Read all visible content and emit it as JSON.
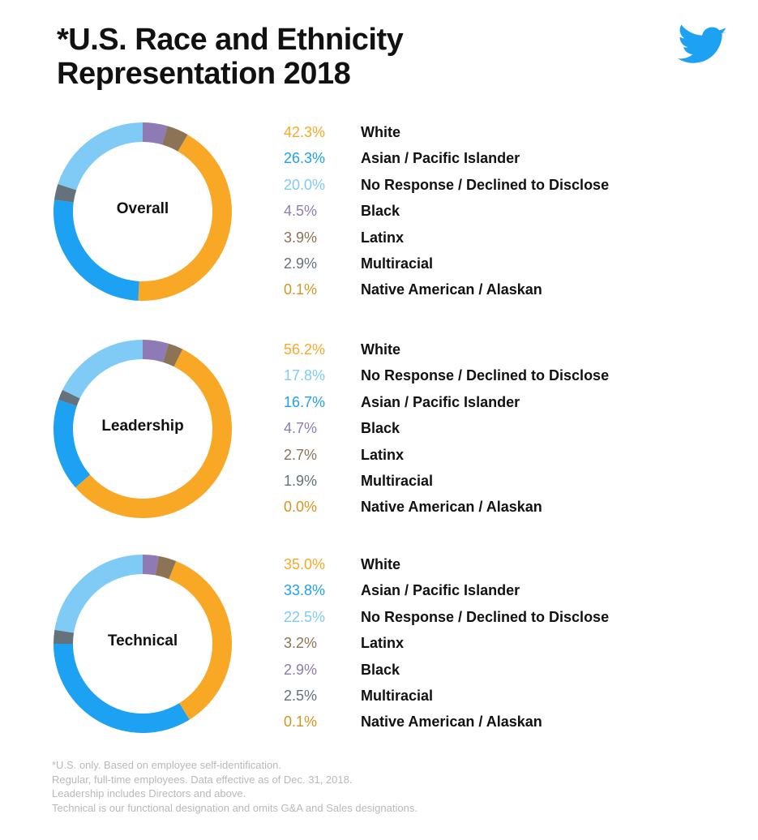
{
  "title_line1": "*U.S. Race and Ethnicity",
  "title_line2": "Representation 2018",
  "logo_icon": "twitter-bird-icon",
  "colors": {
    "White": "#f9a826",
    "Asian / Pacific Islander": "#1da1f2",
    "No Response / Declined to Disclose": "#7fcbf5",
    "Black": "#8e7bb5",
    "Latinx": "#8c7355",
    "Multiracial": "#65727c",
    "Native American / Alaskan": "#d4951f"
  },
  "chart_data": [
    {
      "type": "pie",
      "label": "Overall",
      "slices": [
        {
          "name": "White",
          "value": 42.3,
          "pct_label": "42.3%"
        },
        {
          "name": "Asian / Pacific Islander",
          "value": 26.3,
          "pct_label": "26.3%"
        },
        {
          "name": "No Response / Declined to Disclose",
          "value": 20.0,
          "pct_label": "20.0%"
        },
        {
          "name": "Black",
          "value": 4.5,
          "pct_label": "4.5%"
        },
        {
          "name": "Latinx",
          "value": 3.9,
          "pct_label": "3.9%"
        },
        {
          "name": "Multiracial",
          "value": 2.9,
          "pct_label": "2.9%"
        },
        {
          "name": "Native American / Alaskan",
          "value": 0.1,
          "pct_label": "0.1%"
        }
      ]
    },
    {
      "type": "pie",
      "label": "Leadership",
      "slices": [
        {
          "name": "White",
          "value": 56.2,
          "pct_label": "56.2%"
        },
        {
          "name": "No Response / Declined to Disclose",
          "value": 17.8,
          "pct_label": "17.8%"
        },
        {
          "name": "Asian / Pacific Islander",
          "value": 16.7,
          "pct_label": "16.7%"
        },
        {
          "name": "Black",
          "value": 4.7,
          "pct_label": "4.7%"
        },
        {
          "name": "Latinx",
          "value": 2.7,
          "pct_label": "2.7%"
        },
        {
          "name": "Multiracial",
          "value": 1.9,
          "pct_label": "1.9%"
        },
        {
          "name": "Native American / Alaskan",
          "value": 0.0,
          "pct_label": "0.0%"
        }
      ]
    },
    {
      "type": "pie",
      "label": "Technical",
      "slices": [
        {
          "name": "White",
          "value": 35.0,
          "pct_label": "35.0%"
        },
        {
          "name": "Asian / Pacific Islander",
          "value": 33.8,
          "pct_label": "33.8%"
        },
        {
          "name": "No Response / Declined to Disclose",
          "value": 22.5,
          "pct_label": "22.5%"
        },
        {
          "name": "Latinx",
          "value": 3.2,
          "pct_label": "3.2%"
        },
        {
          "name": "Black",
          "value": 2.9,
          "pct_label": "2.9%"
        },
        {
          "name": "Multiracial",
          "value": 2.5,
          "pct_label": "2.5%"
        },
        {
          "name": "Native American / Alaskan",
          "value": 0.1,
          "pct_label": "0.1%"
        }
      ]
    }
  ],
  "footnote": [
    "*U.S. only. Based on employee self-identification.",
    "Regular, full-time employees. Data effective as of Dec. 31, 2018.",
    "Leadership includes Directors and above.",
    "Technical is our functional designation and omits G&A and Sales designations."
  ]
}
